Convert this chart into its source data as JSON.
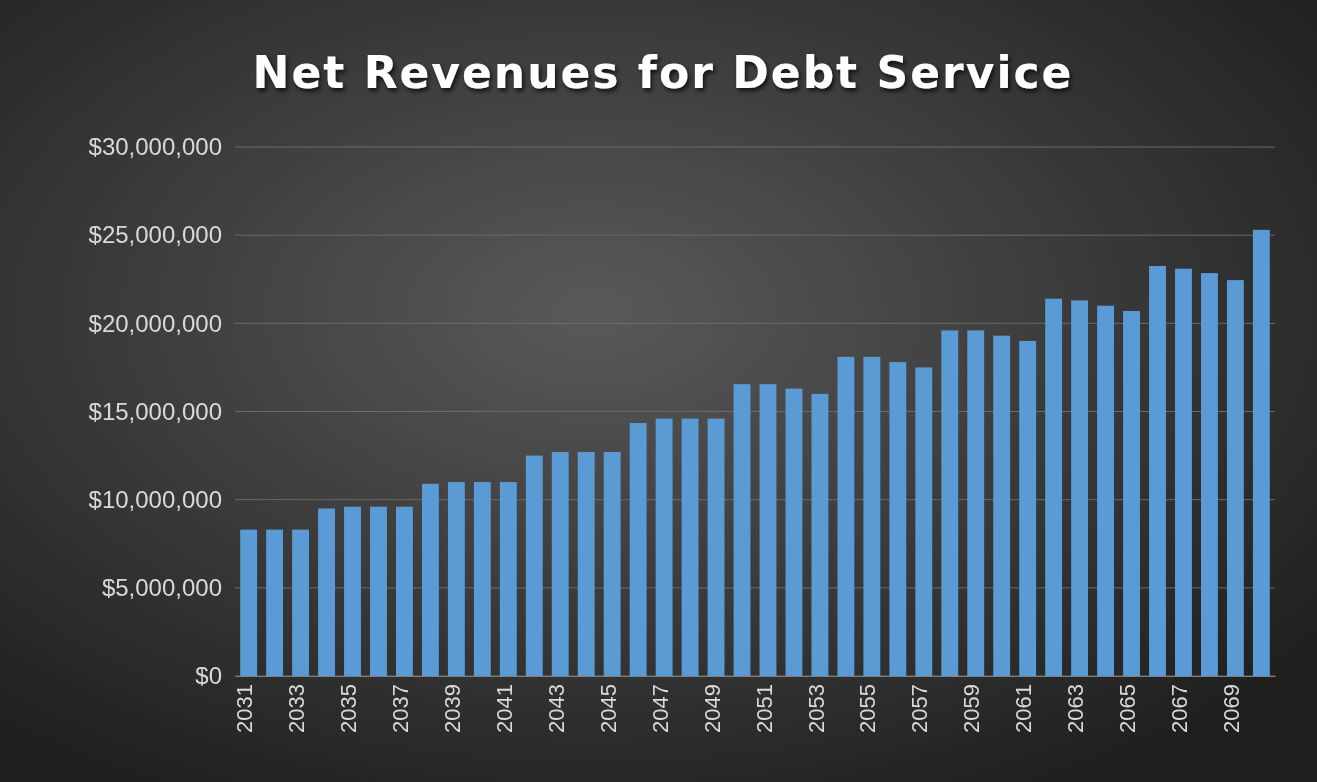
{
  "chart_data": {
    "type": "bar",
    "title": "Net Revenues for Debt Service",
    "categories": [
      "2031",
      null,
      "2033",
      null,
      "2035",
      null,
      "2037",
      null,
      "2039",
      null,
      "2041",
      null,
      "2043",
      null,
      "2045",
      null,
      "2047",
      null,
      "2049",
      null,
      "2051",
      null,
      "2053",
      null,
      "2055",
      null,
      "2057",
      null,
      "2059",
      null,
      "2061",
      null,
      "2063",
      null,
      "2065",
      null,
      "2067",
      null,
      "2069",
      null
    ],
    "values": [
      8300000,
      8300000,
      8300000,
      9500000,
      9600000,
      9600000,
      9600000,
      10900000,
      11000000,
      11000000,
      11000000,
      12500000,
      12700000,
      12700000,
      12700000,
      14350000,
      14600000,
      14600000,
      14600000,
      16550000,
      16550000,
      16300000,
      16000000,
      18100000,
      18100000,
      17800000,
      17500000,
      19600000,
      19600000,
      19300000,
      19000000,
      21400000,
      21300000,
      21000000,
      20700000,
      23250000,
      23100000,
      22850000,
      22450000,
      25300000
    ],
    "color": "#5b9bd5",
    "ylim": [
      0,
      30000000
    ],
    "yticks": [
      {
        "value": 0,
        "label": "$0"
      },
      {
        "value": 5000000,
        "label": "$5,000,000"
      },
      {
        "value": 10000000,
        "label": "$10,000,000"
      },
      {
        "value": 15000000,
        "label": "$15,000,000"
      },
      {
        "value": 20000000,
        "label": "$20,000,000"
      },
      {
        "value": 25000000,
        "label": "$25,000,000"
      },
      {
        "value": 30000000,
        "label": "$30,000,000"
      }
    ],
    "grid": "y"
  }
}
